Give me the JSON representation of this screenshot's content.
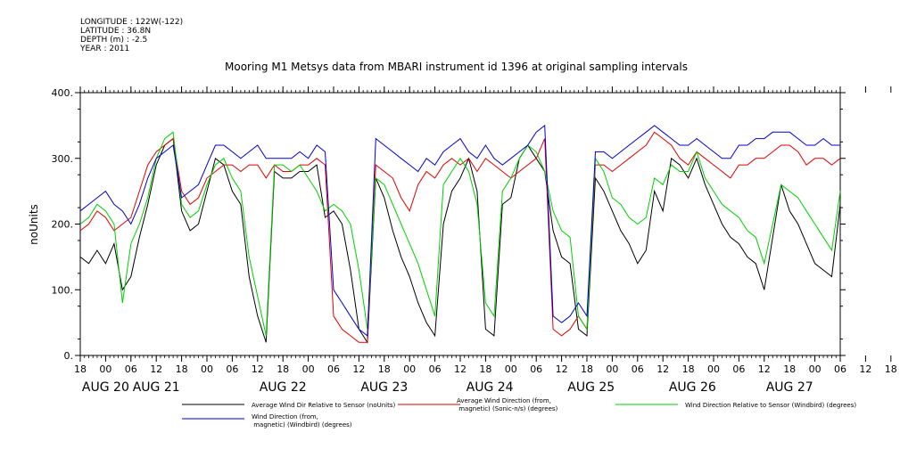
{
  "header": {
    "longitude": "LONGITUDE : 122W(-122)",
    "latitude": "LATITUDE : 36.8N",
    "depth": "DEPTH (m) : -2.5",
    "year": "YEAR : 2011"
  },
  "chart_data": {
    "type": "line",
    "title": "Mooring M1 Metsys data from MBARI instrument id 1396 at original sampling intervals",
    "ylabel": "noUnits",
    "ylim": [
      0,
      400
    ],
    "yticks": [
      "0.",
      "100.",
      "200.",
      "300.",
      "400."
    ],
    "xlim_hours": [
      0,
      180
    ],
    "hour_ticks": [
      "18",
      "00",
      "06",
      "12",
      "18",
      "00",
      "06",
      "12",
      "18",
      "00",
      "06",
      "12",
      "18",
      "00",
      "06",
      "12",
      "18",
      "00",
      "06",
      "12",
      "18",
      "00",
      "06",
      "12",
      "18",
      "00",
      "06",
      "12",
      "18",
      "00",
      "06",
      "12",
      "18"
    ],
    "day_labels": [
      {
        "label": "AUG 20",
        "hour": 6
      },
      {
        "label": "AUG 21",
        "hour": 18
      },
      {
        "label": "AUG 22",
        "hour": 48
      },
      {
        "label": "AUG 23",
        "hour": 72
      },
      {
        "label": "AUG 24",
        "hour": 97
      },
      {
        "label": "AUG 25",
        "hour": 121
      },
      {
        "label": "AUG 26",
        "hour": 145
      },
      {
        "label": "AUG 27",
        "hour": 168
      }
    ],
    "grid": false,
    "legend_position": "bottom",
    "series": [
      {
        "name": "Average Wind Dir Relative to Sensor (noUnits)",
        "color": "#000000",
        "x": [
          0,
          2,
          4,
          6,
          8,
          10,
          12,
          14,
          16,
          18,
          20,
          22,
          24,
          26,
          28,
          30,
          32,
          34,
          36,
          38,
          40,
          42,
          44,
          46,
          48,
          50,
          52,
          54,
          56,
          58,
          60,
          62,
          64,
          66,
          68,
          70,
          72,
          74,
          76,
          78,
          80,
          82,
          84,
          86,
          88,
          90,
          92,
          94,
          96,
          98,
          100,
          102,
          104,
          106,
          108,
          110,
          112,
          114,
          116,
          118,
          120,
          122,
          124,
          126,
          128,
          130,
          132,
          134,
          136,
          138,
          140,
          142,
          144,
          146,
          148,
          150,
          152,
          154,
          156,
          158,
          160,
          162,
          164,
          166,
          168,
          170,
          172,
          174,
          176,
          178,
          180
        ],
        "y": [
          150,
          140,
          160,
          140,
          170,
          100,
          120,
          180,
          230,
          290,
          320,
          330,
          220,
          190,
          200,
          250,
          300,
          290,
          250,
          230,
          120,
          60,
          20,
          280,
          270,
          270,
          280,
          280,
          290,
          210,
          220,
          200,
          130,
          40,
          20,
          270,
          240,
          190,
          150,
          120,
          80,
          50,
          30,
          200,
          250,
          270,
          300,
          250,
          40,
          30,
          230,
          240,
          300,
          320,
          300,
          280,
          190,
          150,
          140,
          40,
          30,
          270,
          250,
          220,
          190,
          170,
          140,
          160,
          250,
          220,
          300,
          290,
          270,
          300,
          260,
          230,
          200,
          180,
          170,
          150,
          140,
          100,
          180,
          260,
          220,
          200,
          170,
          140,
          130,
          120,
          230
        ]
      },
      {
        "name": "Average Wind Direction (from, magnetic) (Sonic-n/s) (degrees)",
        "color": "#e00000",
        "x": [
          0,
          2,
          4,
          6,
          8,
          10,
          12,
          14,
          16,
          18,
          20,
          22,
          24,
          26,
          28,
          30,
          32,
          34,
          36,
          38,
          40,
          42,
          44,
          46,
          48,
          50,
          52,
          54,
          56,
          58,
          60,
          62,
          64,
          66,
          68,
          70,
          72,
          74,
          76,
          78,
          80,
          82,
          84,
          86,
          88,
          90,
          92,
          94,
          96,
          98,
          100,
          102,
          104,
          106,
          108,
          110,
          112,
          114,
          116,
          118,
          120,
          122,
          124,
          126,
          128,
          130,
          132,
          134,
          136,
          138,
          140,
          142,
          144,
          146,
          148,
          150,
          152,
          154,
          156,
          158,
          160,
          162,
          164,
          166,
          168,
          170,
          172,
          174,
          176,
          178,
          180
        ],
        "y": [
          190,
          200,
          220,
          210,
          190,
          200,
          210,
          250,
          290,
          310,
          320,
          330,
          250,
          230,
          240,
          270,
          280,
          290,
          290,
          280,
          290,
          290,
          270,
          290,
          280,
          280,
          290,
          290,
          300,
          290,
          60,
          40,
          30,
          20,
          20,
          290,
          280,
          270,
          240,
          220,
          260,
          280,
          270,
          290,
          300,
          290,
          300,
          280,
          300,
          290,
          280,
          270,
          280,
          290,
          300,
          330,
          40,
          30,
          40,
          60,
          40,
          290,
          290,
          280,
          290,
          300,
          310,
          320,
          340,
          330,
          320,
          300,
          290,
          310,
          300,
          290,
          280,
          270,
          290,
          290,
          300,
          300,
          310,
          320,
          320,
          310,
          290,
          300,
          300,
          290,
          300
        ]
      },
      {
        "name": "Wind Direction Relative to Sensor (Windbird) (degrees)",
        "color": "#00d000",
        "x": [
          0,
          2,
          4,
          6,
          8,
          10,
          12,
          14,
          16,
          18,
          20,
          22,
          24,
          26,
          28,
          30,
          32,
          34,
          36,
          38,
          40,
          42,
          44,
          46,
          48,
          50,
          52,
          54,
          56,
          58,
          60,
          62,
          64,
          66,
          68,
          70,
          72,
          74,
          76,
          78,
          80,
          82,
          84,
          86,
          88,
          90,
          92,
          94,
          96,
          98,
          100,
          102,
          104,
          106,
          108,
          110,
          112,
          114,
          116,
          118,
          120,
          122,
          124,
          126,
          128,
          130,
          132,
          134,
          136,
          138,
          140,
          142,
          144,
          146,
          148,
          150,
          152,
          154,
          156,
          158,
          160,
          162,
          164,
          166,
          168,
          170,
          172,
          174,
          176,
          178,
          180
        ],
        "y": [
          200,
          210,
          230,
          220,
          200,
          80,
          170,
          200,
          240,
          300,
          330,
          340,
          230,
          210,
          220,
          260,
          290,
          300,
          270,
          250,
          150,
          90,
          30,
          290,
          290,
          280,
          290,
          270,
          250,
          220,
          230,
          220,
          200,
          130,
          40,
          270,
          260,
          230,
          200,
          170,
          140,
          100,
          60,
          260,
          280,
          300,
          280,
          230,
          80,
          60,
          250,
          270,
          300,
          320,
          310,
          280,
          220,
          190,
          180,
          60,
          40,
          300,
          280,
          240,
          230,
          210,
          200,
          210,
          270,
          260,
          290,
          280,
          280,
          310,
          270,
          250,
          230,
          220,
          210,
          190,
          180,
          140,
          200,
          260,
          250,
          240,
          220,
          200,
          180,
          160,
          250
        ]
      },
      {
        "name": "Wind Direction (from, magnetic) (Windbird) (degrees)",
        "color": "#0000d0",
        "x": [
          0,
          2,
          4,
          6,
          8,
          10,
          12,
          14,
          16,
          18,
          20,
          22,
          24,
          26,
          28,
          30,
          32,
          34,
          36,
          38,
          40,
          42,
          44,
          46,
          48,
          50,
          52,
          54,
          56,
          58,
          60,
          62,
          64,
          66,
          68,
          70,
          72,
          74,
          76,
          78,
          80,
          82,
          84,
          86,
          88,
          90,
          92,
          94,
          96,
          98,
          100,
          102,
          104,
          106,
          108,
          110,
          112,
          114,
          116,
          118,
          120,
          122,
          124,
          126,
          128,
          130,
          132,
          134,
          136,
          138,
          140,
          142,
          144,
          146,
          148,
          150,
          152,
          154,
          156,
          158,
          160,
          162,
          164,
          166,
          168,
          170,
          172,
          174,
          176,
          178,
          180
        ],
        "y": [
          220,
          230,
          240,
          250,
          230,
          220,
          200,
          230,
          270,
          300,
          310,
          320,
          240,
          250,
          260,
          290,
          320,
          320,
          310,
          300,
          310,
          320,
          300,
          300,
          300,
          300,
          310,
          300,
          320,
          310,
          100,
          80,
          60,
          40,
          30,
          330,
          320,
          310,
          300,
          290,
          280,
          300,
          290,
          310,
          320,
          330,
          310,
          300,
          320,
          300,
          290,
          300,
          310,
          320,
          340,
          350,
          60,
          50,
          60,
          80,
          60,
          310,
          310,
          300,
          310,
          320,
          330,
          340,
          350,
          340,
          330,
          320,
          320,
          330,
          320,
          310,
          300,
          300,
          320,
          320,
          330,
          330,
          340,
          340,
          340,
          330,
          320,
          320,
          330,
          320,
          320
        ]
      }
    ]
  }
}
